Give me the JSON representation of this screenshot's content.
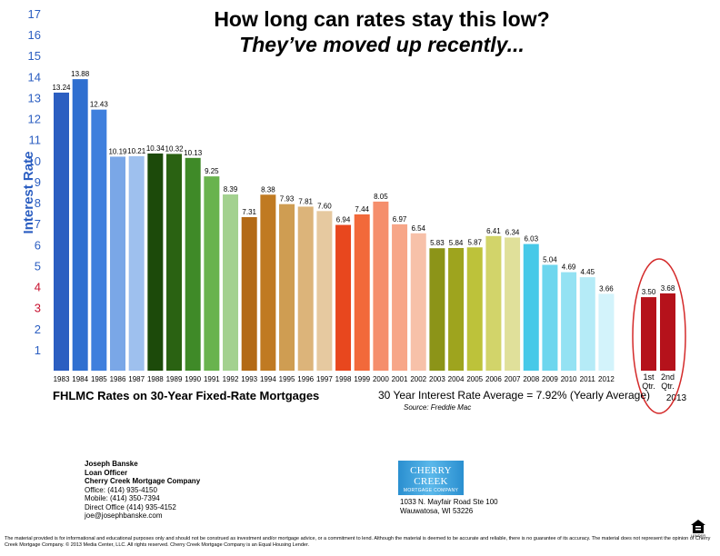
{
  "chart_data": {
    "type": "bar",
    "title": "How long can rates stay this low?",
    "subtitle": "They’ve moved up recently...",
    "ylabel": "Interest Rate",
    "xlabel": "FHLMC Rates on 30-Year Fixed-Rate Mortgages",
    "ylim": [
      0,
      17
    ],
    "yticks": [
      1,
      2,
      3,
      4,
      5,
      6,
      7,
      8,
      9,
      10,
      11,
      12,
      13,
      14,
      15,
      16,
      17
    ],
    "grid": false,
    "categories": [
      "1983",
      "1984",
      "1985",
      "1986",
      "1987",
      "1988",
      "1989",
      "1990",
      "1991",
      "1992",
      "1993",
      "1994",
      "1995",
      "1996",
      "1997",
      "1998",
      "1999",
      "2000",
      "2001",
      "2002",
      "2003",
      "2004",
      "2005",
      "2006",
      "2007",
      "2008",
      "2009",
      "2010",
      "2011",
      "2012",
      "1st Qtr.",
      "2nd Qtr."
    ],
    "values": [
      13.24,
      13.88,
      12.43,
      10.19,
      10.21,
      10.34,
      10.32,
      10.13,
      9.25,
      8.39,
      7.31,
      8.38,
      7.93,
      7.81,
      7.6,
      6.94,
      7.44,
      8.05,
      6.97,
      6.54,
      5.83,
      5.84,
      5.87,
      6.41,
      6.34,
      6.03,
      5.04,
      4.69,
      4.45,
      3.66,
      3.5,
      3.68
    ],
    "value_labels": [
      "13.24",
      "13.88",
      "12.43",
      "10.19",
      "10.21",
      "10.34",
      "10.32",
      "10.13",
      "9.25",
      "8.39",
      "7.31",
      "8.38",
      "7.93",
      "7.81",
      "7.60",
      "6.94",
      "7.44",
      "8.05",
      "6.97",
      "6.54",
      "5.83",
      "5.84",
      "5.87",
      "6.41",
      "6.34",
      "6.03",
      "5.04",
      "4.69",
      "4.45",
      "3.66",
      "3.50",
      "3.68"
    ],
    "colors": [
      "#2b5ec1",
      "#2f6fd0",
      "#3f7fdd",
      "#7aa7e7",
      "#9ec0ee",
      "#1c4a0a",
      "#2a6212",
      "#3f8a28",
      "#69b34e",
      "#a3d18f",
      "#b36a16",
      "#c07a22",
      "#cf9d52",
      "#dcb47a",
      "#e6c9a0",
      "#e8471e",
      "#f2693a",
      "#f58e6c",
      "#f7a688",
      "#f7c1a9",
      "#8c9418",
      "#9ea41e",
      "#bdc23a",
      "#d2d46a",
      "#e0e09a",
      "#46c9e8",
      "#6dd6ee",
      "#94e2f3",
      "#b5ebf7",
      "#d3f3fb",
      "#b5121b",
      "#b5121b"
    ],
    "year_2013_label": "2013",
    "average_label": "30 Year Interest Rate Average = 7.92% (Yearly Average)",
    "source": "Source: Freddie Mac"
  },
  "contact": {
    "name": "Joseph Banske",
    "title": "Loan Officer",
    "company": "Cherry Creek Mortgage Company",
    "office": "Office: (414) 935-4150",
    "mobile": "Mobile: (414) 350-7394",
    "direct": "Direct Office (414) 935-4152",
    "email": "joe@josephbanske.com"
  },
  "logo": {
    "name": "CHERRY CREEK",
    "sub": "MORTGAGE COMPANY",
    "tagline": "A tradition of trust"
  },
  "address": {
    "line1": "1033 N. Mayfair Road Ste 100",
    "line2": "Wauwatosa, WI 53226"
  },
  "disclaimer": "The material provided is for informational and educational purposes only and should not be construed as investment and/or mortgage advice, or a commitment to lend. Although the material is deemed to be accurate and reliable, there is no guarantee of its accuracy. The material does not represent the opinion of Cherry Creek Mortgage Company. © 2013 Media Center, LLC. All rights reserved. Cherry Creek Mortgage Company is an Equal Housing Lender.",
  "eho_label": "LENDER",
  "colors": {
    "axis_label": "#2b5ec1",
    "tick_blue": "#2b5ec1",
    "tick_red": "#c8102e",
    "highlight_ring": "#d42a2a"
  }
}
